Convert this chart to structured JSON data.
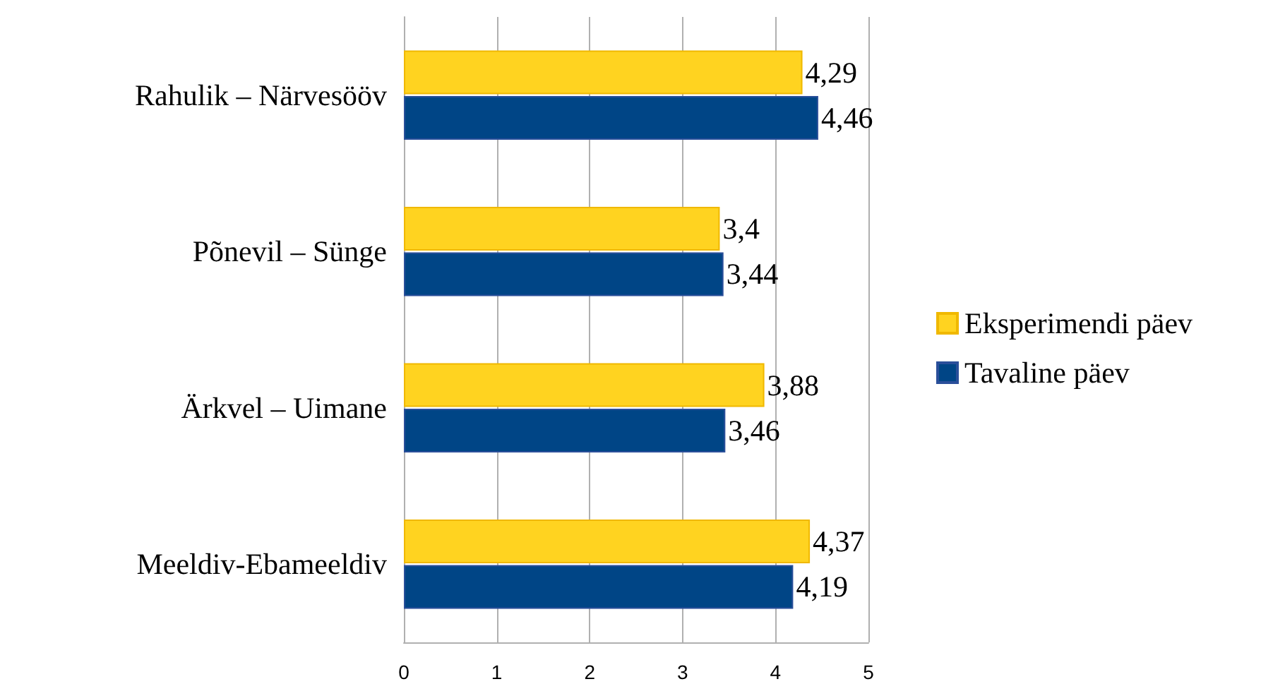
{
  "chart_data": {
    "type": "bar",
    "orientation": "horizontal",
    "categories": [
      "Rahulik – Närvesööv",
      "Põnevil – Sünge",
      "Ärkvel – Uimane",
      "Meeldiv-Ebameeldiv"
    ],
    "series": [
      {
        "name": "Eksperimendi päev",
        "color": "#ffd320",
        "values": [
          4.29,
          3.4,
          3.88,
          4.37
        ],
        "value_labels": [
          "4,29",
          "3,4",
          "3,88",
          "4,37"
        ]
      },
      {
        "name": "Tavaline päev",
        "color": "#004586",
        "values": [
          4.46,
          3.44,
          3.46,
          4.19
        ],
        "value_labels": [
          "4,46",
          "3,44",
          "3,46",
          "4,19"
        ]
      }
    ],
    "xlim": [
      0,
      5
    ],
    "xticks": [
      0,
      1,
      2,
      3,
      4,
      5
    ],
    "grid": "x",
    "legend": "right"
  }
}
